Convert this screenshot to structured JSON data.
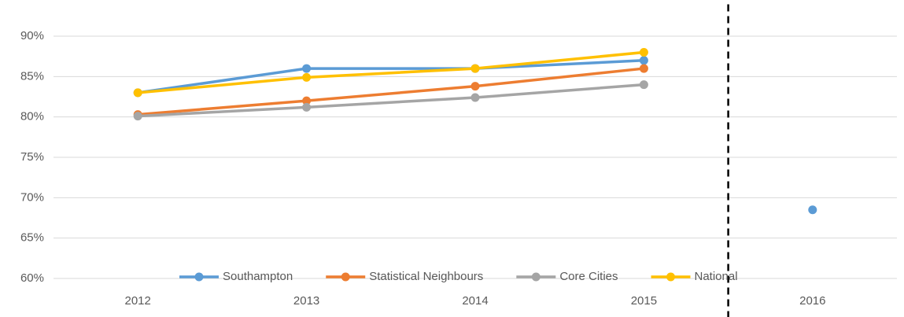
{
  "chart_data": {
    "type": "line",
    "categories": [
      "2012",
      "2013",
      "2014",
      "2015",
      "2016"
    ],
    "series": [
      {
        "name": "Southampton",
        "color": "#5b9bd5",
        "values": [
          83,
          86,
          86,
          87,
          68.5
        ]
      },
      {
        "name": "Statistical Neighbours",
        "color": "#ed7d31",
        "values": [
          80.3,
          82,
          83.8,
          86,
          null
        ]
      },
      {
        "name": "Core Cities",
        "color": "#a5a5a5",
        "values": [
          80.1,
          81.2,
          82.4,
          84,
          null
        ]
      },
      {
        "name": "National",
        "color": "#ffc000",
        "values": [
          83,
          84.9,
          86,
          88,
          null
        ]
      }
    ],
    "ylim": [
      60,
      92
    ],
    "yticks": [
      {
        "value": 60,
        "label": "60%"
      },
      {
        "value": 65,
        "label": "65%"
      },
      {
        "value": 70,
        "label": "70%"
      },
      {
        "value": 75,
        "label": "75%"
      },
      {
        "value": 80,
        "label": "80%"
      },
      {
        "value": 85,
        "label": "85%"
      },
      {
        "value": 90,
        "label": "90%"
      }
    ],
    "grid": true,
    "divider_before": "2016",
    "legend": "bottom"
  }
}
